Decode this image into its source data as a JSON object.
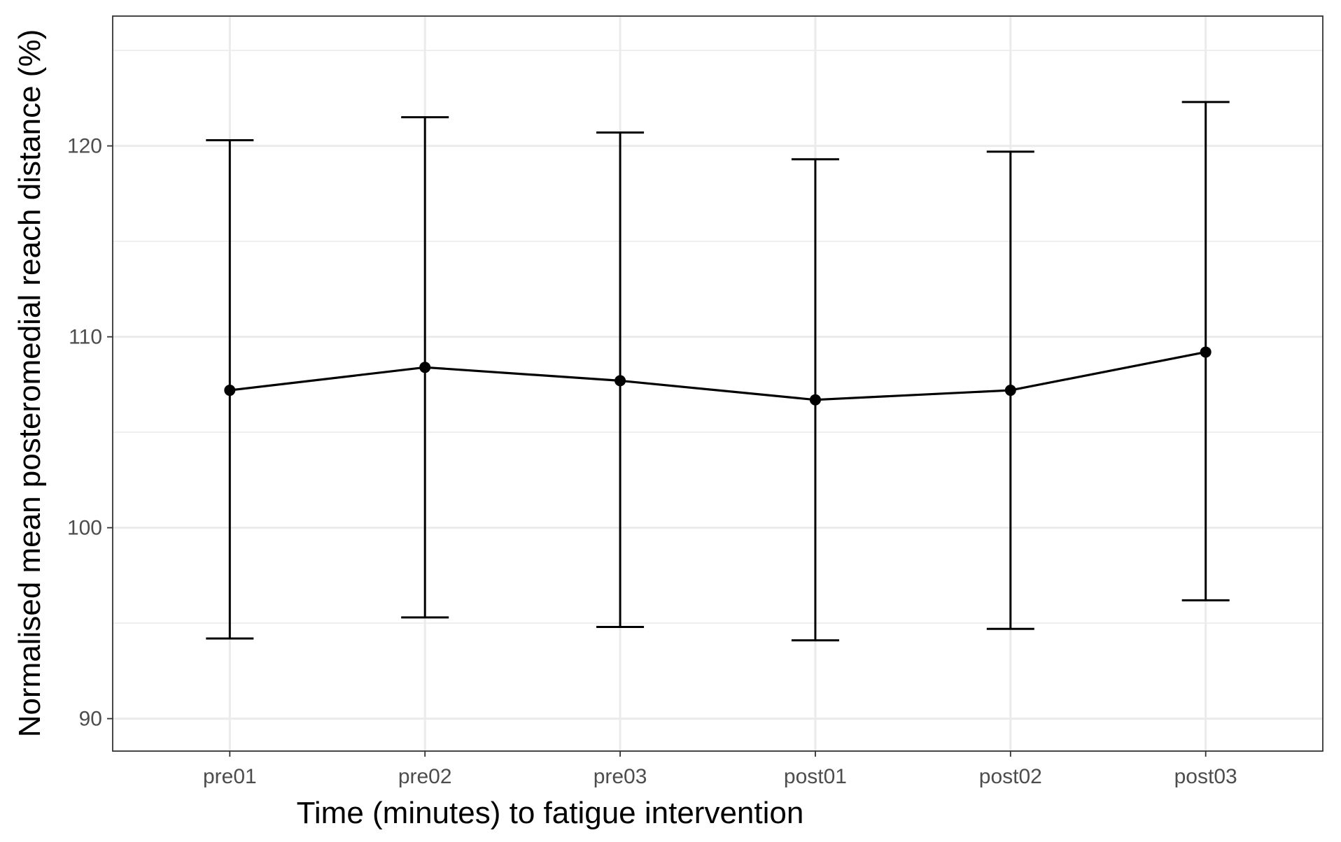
{
  "chart_data": {
    "type": "line",
    "title": "",
    "xlabel": "Time (minutes) to fatigue intervention",
    "ylabel": "Normalised mean posteromedial reach distance (%)",
    "categories": [
      "pre01",
      "pre02",
      "pre03",
      "post01",
      "post02",
      "post03"
    ],
    "series": [
      {
        "values": [
          107.2,
          108.4,
          107.7,
          106.7,
          107.2,
          109.2
        ],
        "error_lower": [
          94.2,
          95.3,
          94.8,
          94.1,
          94.7,
          96.2
        ],
        "error_upper": [
          120.3,
          121.5,
          120.7,
          119.3,
          119.7,
          122.3
        ]
      }
    ],
    "ylim": [
      88.3,
      126.8
    ],
    "yticks": [
      90,
      100,
      110,
      120
    ],
    "ytick_labels": [
      "90",
      "100",
      "110",
      "120"
    ],
    "grid": true,
    "colors": {
      "line": "#000000",
      "grid": "#ebebeb",
      "border": "#333333",
      "tick_text": "#4d4d4d"
    }
  }
}
